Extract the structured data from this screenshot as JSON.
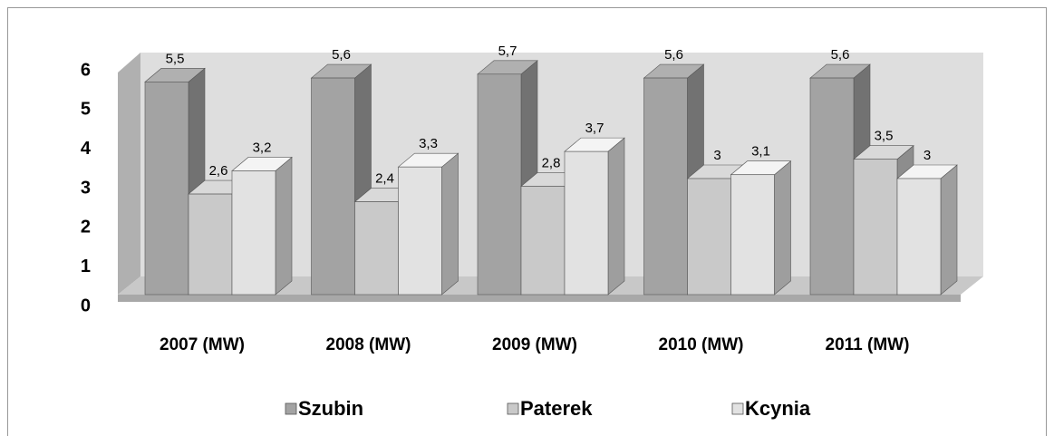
{
  "chart_data": {
    "type": "bar3d",
    "categories": [
      "2007 (MW)",
      "2008 (MW)",
      "2009 (MW)",
      "2010 (MW)",
      "2011 (MW)"
    ],
    "series": [
      {
        "name": "Szubin",
        "color": "#a3a3a3",
        "values": [
          5.5,
          5.6,
          5.7,
          5.6,
          5.6
        ],
        "value_labels": [
          "5,5",
          "5,6",
          "5,7",
          "5,6",
          "5,6"
        ]
      },
      {
        "name": "Paterek",
        "color": "#c9c9c9",
        "values": [
          2.6,
          2.4,
          2.8,
          3,
          3.5
        ],
        "value_labels": [
          "2,6",
          "2,4",
          "2,8",
          "3",
          "3,5"
        ]
      },
      {
        "name": "Kcynia",
        "color": "#e2e2e2",
        "values": [
          3.2,
          3.3,
          3.7,
          3.1,
          3
        ],
        "value_labels": [
          "3,2",
          "3,3",
          "3,7",
          "3,1",
          "3"
        ]
      }
    ],
    "ylim": [
      0,
      6
    ],
    "yticks": [
      0,
      1,
      2,
      3,
      4,
      5,
      6
    ],
    "legend": "bottom"
  }
}
